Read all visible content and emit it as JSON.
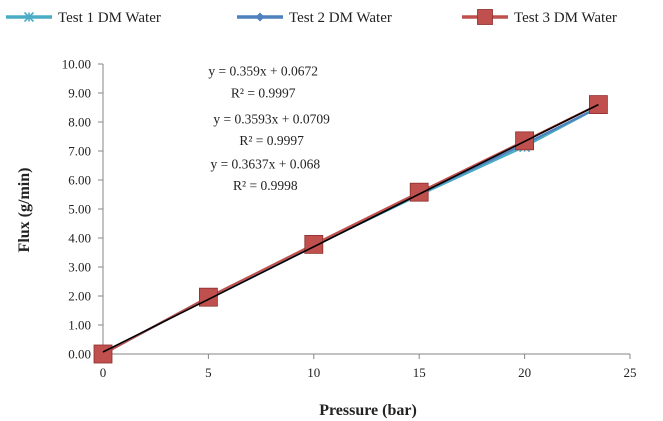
{
  "chart_data": {
    "type": "scatter",
    "title": "",
    "xlabel": "Pressure (bar)",
    "ylabel": "Flux (g/min)",
    "xlim": [
      0,
      25
    ],
    "ylim": [
      0,
      10
    ],
    "x_ticks": [
      "0",
      "5",
      "10",
      "15",
      "20",
      "25"
    ],
    "y_ticks": [
      "0.00",
      "1.00",
      "2.00",
      "3.00",
      "4.00",
      "5.00",
      "6.00",
      "7.00",
      "8.00",
      "9.00",
      "10.00"
    ],
    "grid": false,
    "legend_position": "top",
    "series": [
      {
        "name": "Test 1 DM Water",
        "color": "#4bacc6",
        "marker": "asterisk",
        "x": [
          0,
          5,
          10,
          15,
          20,
          23.5
        ],
        "y": [
          0.0,
          1.95,
          3.73,
          5.48,
          7.15,
          8.5
        ]
      },
      {
        "name": "Test 2 DM Water",
        "color": "#4f81bd",
        "marker": "diamond",
        "x": [
          0,
          5,
          10,
          15,
          20,
          23.5
        ],
        "y": [
          0.0,
          1.96,
          3.74,
          5.52,
          7.24,
          8.5
        ]
      },
      {
        "name": "Test 3 DM Water",
        "color": "#c0504d",
        "marker": "square",
        "x": [
          0,
          5,
          10,
          15,
          20,
          23.5
        ],
        "y": [
          0.0,
          1.96,
          3.78,
          5.58,
          7.35,
          8.6
        ]
      }
    ],
    "trendline": {
      "color": "#000000",
      "x": [
        0,
        23.5
      ],
      "y": [
        0.068,
        8.6
      ]
    },
    "annotations": [
      {
        "text": "y = 0.359x + 0.0672",
        "x": 7.6,
        "y": 9.6,
        "anchor": "middle"
      },
      {
        "text": "R² = 0.9997",
        "x": 7.6,
        "y": 8.85,
        "anchor": "middle"
      },
      {
        "text": "y = 0.3593x + 0.0709",
        "x": 8.0,
        "y": 7.95,
        "anchor": "middle"
      },
      {
        "text": "R² = 0.9997",
        "x": 8.0,
        "y": 7.2,
        "anchor": "middle"
      },
      {
        "text": "y = 0.3637x + 0.068",
        "x": 7.7,
        "y": 6.4,
        "anchor": "middle"
      },
      {
        "text": "R² = 0.9998",
        "x": 7.7,
        "y": 5.65,
        "anchor": "middle"
      }
    ]
  }
}
